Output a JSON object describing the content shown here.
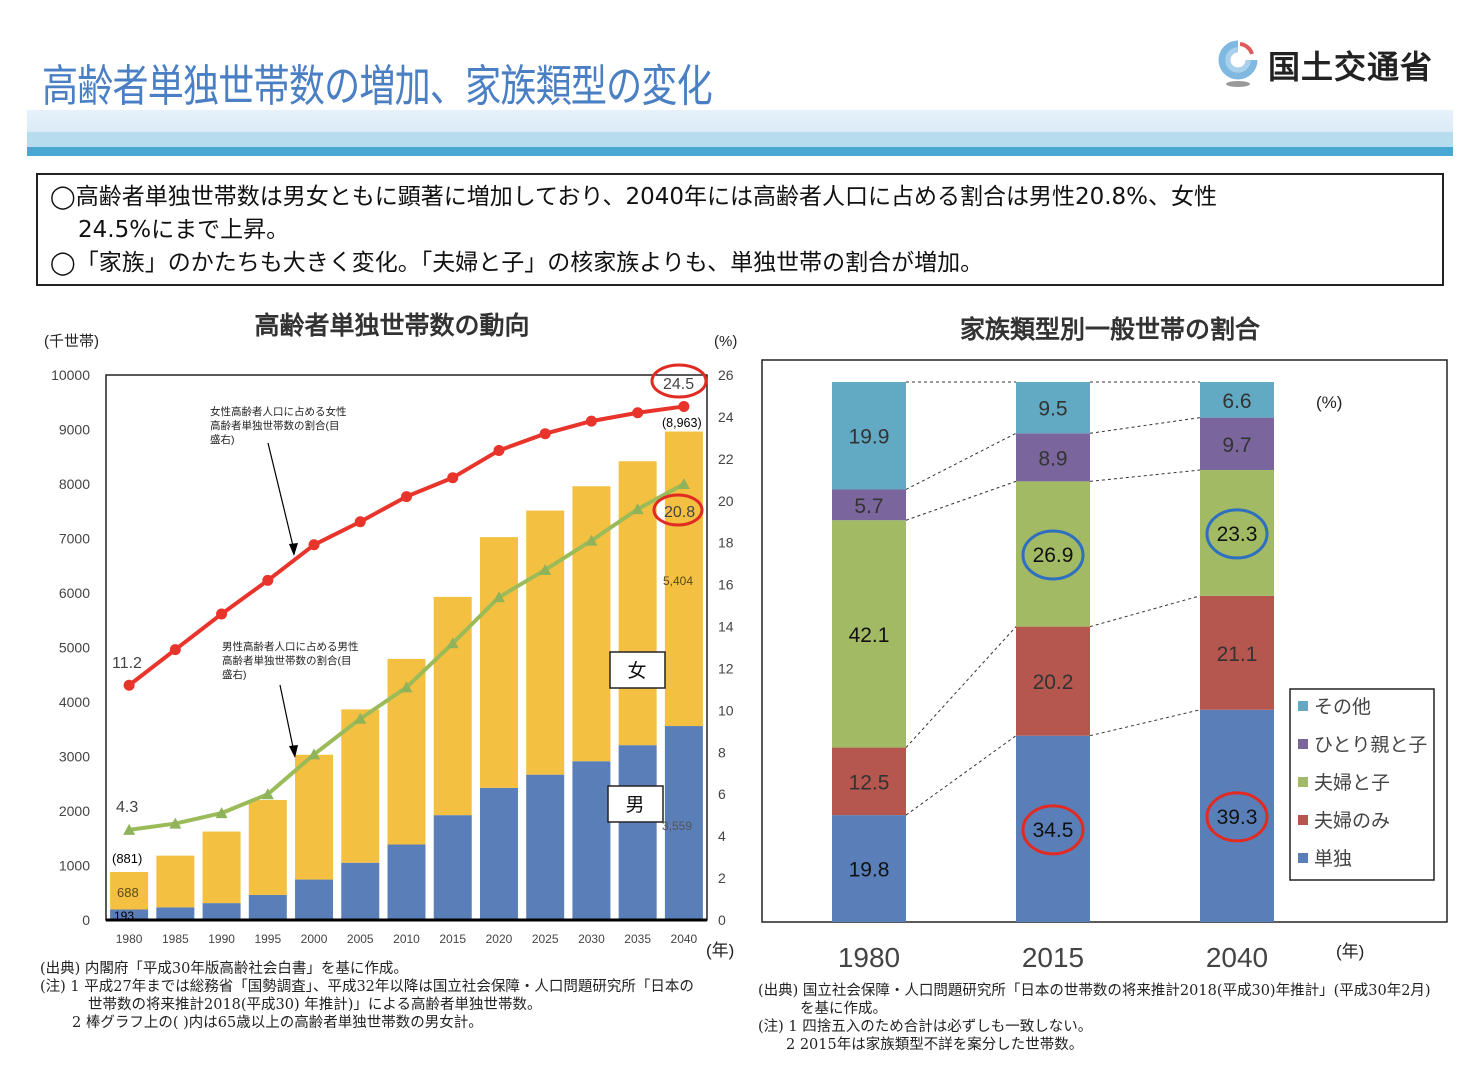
{
  "header": {
    "title": "高齢者単独世帯数の増加、家族類型の変化",
    "logo_text": "国土交通省",
    "logo_icon": "mlit-emblem-icon"
  },
  "summary": {
    "line1": "◯高齢者単独世帯数は男女ともに顕著に増加しており、2040年には高齢者人口に占める割合は男性20.8%、女性",
    "line2": "24.5%にまで上昇。",
    "line3": "◯「家族」のかたちも大きく変化。「夫婦と子」の核家族よりも、単独世帯の割合が増加。"
  },
  "left_notes": {
    "source": "(出典) 内閣府「平成30年版高齢社会白書」を基に作成。",
    "note1a": "(注) 1 平成27年までは総務省「国勢調査」、平成32年以降は国立社会保障・人口問題研究所「日本の",
    "note1b": "世帯数の将来推計2018(平成30) 年推計)」による高齢者単独世帯数。",
    "note2": "2 棒グラフ上の( )内は65歳以上の高齢者単独世帯数の男女計。"
  },
  "right_notes": {
    "source_a": "(出典) 国立社会保障・人口問題研究所「日本の世帯数の将来推計2018(平成30)年推計」(平成30年2月)",
    "source_b": "を基に作成。",
    "note1": "(注) 1 四捨五入のため合計は必ずしも一致しない。",
    "note2": "2 2015年は家族類型不詳を案分した世帯数。"
  },
  "chart_data": [
    {
      "type": "bar",
      "stacked": true,
      "title": "高齢者単独世帯数の動向",
      "ylabel": "(千世帯)",
      "y2label": "(%)",
      "xlabel": "(年)",
      "ylim": [
        0,
        10000
      ],
      "yticks": [
        0,
        1000,
        2000,
        3000,
        4000,
        5000,
        6000,
        7000,
        8000,
        9000,
        10000
      ],
      "y2lim": [
        0,
        26
      ],
      "y2ticks": [
        0,
        2,
        4,
        6,
        8,
        10,
        12,
        14,
        16,
        18,
        20,
        22,
        24,
        26
      ],
      "categories": [
        "1980",
        "1985",
        "1990",
        "1995",
        "2000",
        "2005",
        "2010",
        "2015",
        "2020",
        "2025",
        "2030",
        "2035",
        "2040"
      ],
      "series": [
        {
          "name": "男",
          "color": "#5a7fb8",
          "values": [
            193,
            233,
            310,
            460,
            742,
            1051,
            1386,
            1924,
            2425,
            2667,
            2914,
            3208,
            3559
          ]
        },
        {
          "name": "女",
          "color": "#f4c042",
          "values": [
            688,
            948,
            1313,
            1742,
            2290,
            2814,
            3405,
            4004,
            4600,
            4845,
            5045,
            5210,
            5404
          ]
        }
      ],
      "totals": [
        881,
        1181,
        1623,
        2202,
        3032,
        3865,
        4791,
        5928,
        7025,
        7512,
        7959,
        8418,
        8963
      ],
      "lines": [
        {
          "name": "女性高齢者人口に占める女性高齢者単独世帯数の割合(目盛右)",
          "axis": "right",
          "color": "#e8342a",
          "marker": "circle",
          "values": [
            11.2,
            12.9,
            14.6,
            16.2,
            17.9,
            19.0,
            20.2,
            21.1,
            22.4,
            23.2,
            23.8,
            24.2,
            24.5
          ]
        },
        {
          "name": "男性高齢者人口に占める男性高齢者単独世帯数の割合(目盛右)",
          "axis": "right",
          "color": "#9bbb59",
          "marker": "triangle",
          "values": [
            4.3,
            4.6,
            5.1,
            6.0,
            7.9,
            9.6,
            11.1,
            13.2,
            15.4,
            16.7,
            18.1,
            19.6,
            20.8
          ]
        }
      ],
      "annotations": {
        "female_line_label": "女性高齢者人口に占める女性高齢者単独世帯数の割合(目盛右)",
        "male_line_label": "男性高齢者人口に占める男性高齢者単独世帯数の割合(目盛右)",
        "female_box": "女",
        "male_box": "男",
        "first_total": "(881)",
        "first_female": "688",
        "first_male": "193",
        "last_total": "(8,963)",
        "last_female": "5,404",
        "last_male": "3,559",
        "female_start": "11.2",
        "female_end": "24.5",
        "male_start": "4.3",
        "male_end": "20.8"
      }
    },
    {
      "type": "bar",
      "stacked": true,
      "percent": true,
      "title": "家族類型別一般世帯の割合",
      "unit": "(%)",
      "xlabel": "(年)",
      "categories": [
        "1980",
        "2015",
        "2040"
      ],
      "series": [
        {
          "name": "単独",
          "color": "#5a7fb8",
          "values": [
            19.8,
            34.5,
            39.3
          ]
        },
        {
          "name": "夫婦のみ",
          "color": "#b5574f",
          "values": [
            12.5,
            20.2,
            21.1
          ]
        },
        {
          "name": "夫婦と子",
          "color": "#a2ba64",
          "values": [
            42.1,
            26.9,
            23.3
          ]
        },
        {
          "name": "ひとり親と子",
          "color": "#7b659d",
          "values": [
            5.7,
            8.9,
            9.7
          ]
        },
        {
          "name": "その他",
          "color": "#62a9c3",
          "values": [
            19.9,
            9.5,
            6.6
          ]
        }
      ],
      "legend": [
        "その他",
        "ひとり親と子",
        "夫婦と子",
        "夫婦のみ",
        "単独"
      ],
      "legend_position": "bottom-right",
      "highlighted": {
        "red_circles": [
          "2015 単独 34.5",
          "2040 単独 39.3"
        ],
        "blue_circles": [
          "2015 夫婦と子 26.9",
          "2040 夫婦と子 23.3"
        ]
      }
    }
  ]
}
